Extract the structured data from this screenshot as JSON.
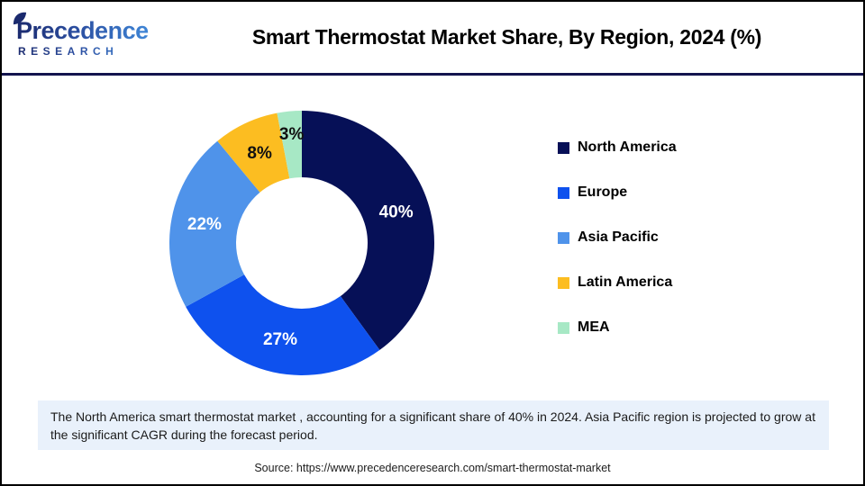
{
  "header": {
    "logo": {
      "line1": "Precedence",
      "line2": "RESEARCH"
    },
    "title": "Smart Thermostat Market Share, By Region, 2024 (%)"
  },
  "chart_data": {
    "type": "pie",
    "subtype": "donut",
    "title": "Smart Thermostat Market Share, By Region, 2024 (%)",
    "start_angle_deg": 0,
    "direction": "clockwise",
    "categories": [
      "North America",
      "Europe",
      "Asia Pacific",
      "Latin America",
      "MEA"
    ],
    "values": [
      40,
      27,
      22,
      8,
      3
    ],
    "labels": [
      "40%",
      "27%",
      "22%",
      "8%",
      "3%"
    ],
    "colors": [
      "#061057",
      "#0e51ee",
      "#4f93ea",
      "#fcbd21",
      "#a7e8c5"
    ],
    "label_colors": [
      "#ffffff",
      "#ffffff",
      "#ffffff",
      "#111111",
      "#111111"
    ],
    "legend_position": "right"
  },
  "caption": {
    "text": "The North America smart thermostat market , accounting for a significant share of 40% in 2024. Asia Pacific region is projected to grow at the significant CAGR during the forecast period."
  },
  "source": {
    "text": "Source: https://www.precedenceresearch.com/smart-thermostat-market"
  },
  "colors": {
    "divider": "#13144e",
    "caption_bg": "#e9f1fb",
    "logo_gradient_start": "#1b2a6e",
    "logo_gradient_end": "#3f87d8"
  }
}
